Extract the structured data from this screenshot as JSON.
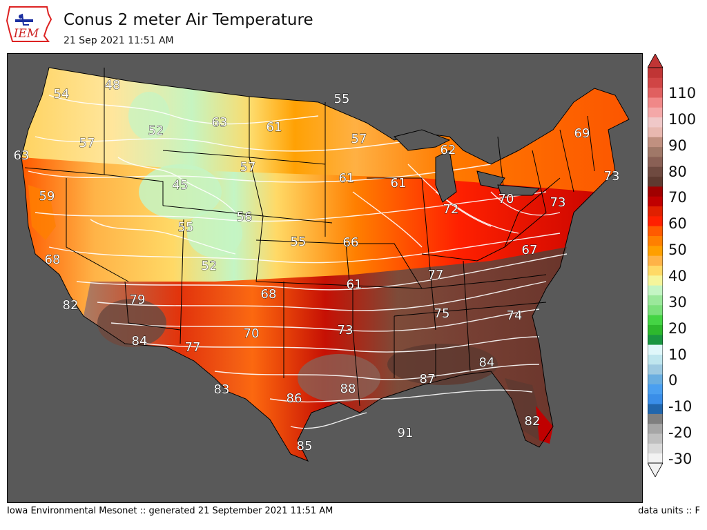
{
  "header": {
    "title": "Conus 2 meter Air Temperature",
    "subtitle": "21 Sep 2021 11:51 AM",
    "logo_text": "IEM"
  },
  "footer": {
    "left": "Iowa Environmental Mesonet :: generated 21 September 2021 11:51 AM",
    "right": "data units :: F"
  },
  "colorbar": {
    "labels": [
      "110",
      "100",
      "90",
      "80",
      "70",
      "60",
      "50",
      "40",
      "30",
      "20",
      "10",
      "0",
      "-10",
      "-20",
      "-30"
    ],
    "colors": [
      "#f2f2f2",
      "#d9d9d9",
      "#bfbfbf",
      "#a6a6a6",
      "#7f7f7f",
      "#2166ac",
      "#3a8ee8",
      "#4a9ff0",
      "#6aaee0",
      "#9ecae1",
      "#bfe6ee",
      "#e0f7fa",
      "#1a9641",
      "#2db82d",
      "#44d444",
      "#7be07b",
      "#9be89b",
      "#c4f5c4",
      "#f5f59b",
      "#ffd966",
      "#ffb347",
      "#ff9f00",
      "#ff7f00",
      "#ff5a00",
      "#ff2000",
      "#e02000",
      "#c00000",
      "#a00000",
      "#5e3a30",
      "#6f4a40",
      "#8a6055",
      "#a07868",
      "#c09080",
      "#e8b8b0",
      "#f0c8c8",
      "#f4a8a8",
      "#f08888",
      "#e06060",
      "#d04545",
      "#c03535"
    ],
    "unit": "F"
  },
  "points": [
    {
      "label": "54"
    },
    {
      "label": "48"
    },
    {
      "label": "55"
    },
    {
      "label": "63"
    },
    {
      "label": "61"
    },
    {
      "label": "52"
    },
    {
      "label": "57"
    },
    {
      "label": "57"
    },
    {
      "label": "69"
    },
    {
      "label": "63"
    },
    {
      "label": "62"
    },
    {
      "label": "57"
    },
    {
      "label": "73"
    },
    {
      "label": "59"
    },
    {
      "label": "45"
    },
    {
      "label": "61"
    },
    {
      "label": "61"
    },
    {
      "label": "72"
    },
    {
      "label": "70"
    },
    {
      "label": "73"
    },
    {
      "label": "56"
    },
    {
      "label": "55"
    },
    {
      "label": "55"
    },
    {
      "label": "66"
    },
    {
      "label": "67"
    },
    {
      "label": "68"
    },
    {
      "label": "52"
    },
    {
      "label": "77"
    },
    {
      "label": "61"
    },
    {
      "label": "82"
    },
    {
      "label": "79"
    },
    {
      "label": "68"
    },
    {
      "label": "75"
    },
    {
      "label": "74"
    },
    {
      "label": "84"
    },
    {
      "label": "70"
    },
    {
      "label": "73"
    },
    {
      "label": "77"
    },
    {
      "label": "84"
    },
    {
      "label": "87"
    },
    {
      "label": "83"
    },
    {
      "label": "86"
    },
    {
      "label": "88"
    },
    {
      "label": "82"
    },
    {
      "label": "91"
    },
    {
      "label": "85"
    }
  ]
}
